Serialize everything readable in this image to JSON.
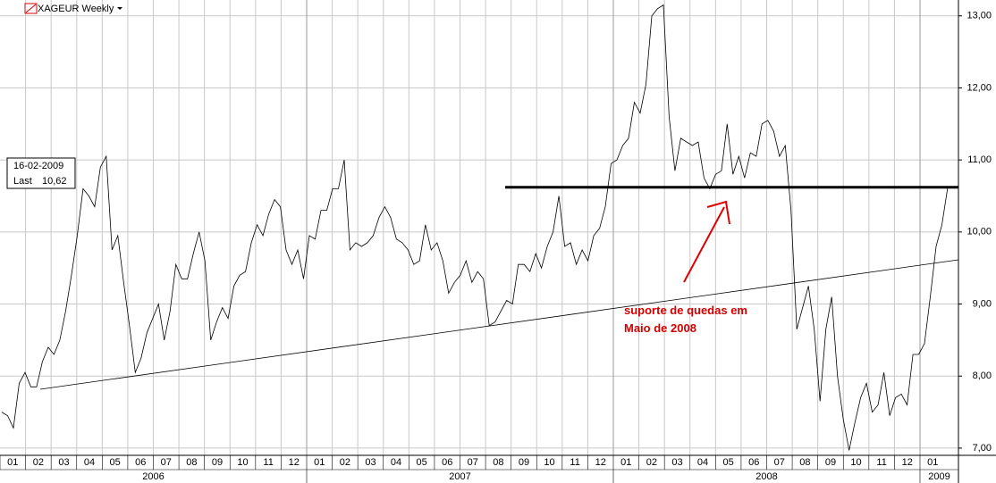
{
  "chart_data": {
    "type": "line",
    "title": "XAGEUR Weekly",
    "info": {
      "date": "16-02-2009",
      "last_label": "Last",
      "last": {
        "value": 10.62,
        "label": "10,62"
      }
    },
    "annotation": [
      "suporte de quedas em",
      "Maio de 2008"
    ],
    "months": [
      "01",
      "02",
      "03",
      "04",
      "05",
      "06",
      "07",
      "08",
      "09",
      "10",
      "11",
      "12",
      "01",
      "02",
      "03",
      "04",
      "05",
      "06",
      "07",
      "08",
      "09",
      "10",
      "11",
      "12",
      "01",
      "02",
      "03",
      "04",
      "05",
      "06",
      "07",
      "08",
      "09",
      "10",
      "11",
      "12",
      "01"
    ],
    "years": [
      "2006",
      "2007",
      "2008",
      "2009"
    ],
    "series": [
      {
        "name": "XAGEUR",
        "color": "#000000",
        "values": [
          7.5,
          7.45,
          7.28,
          7.9,
          8.05,
          7.85,
          7.85,
          8.2,
          8.4,
          8.3,
          8.5,
          8.9,
          9.4,
          9.95,
          10.6,
          10.5,
          10.35,
          10.9,
          11.05,
          9.75,
          9.95,
          9.3,
          8.7,
          8.05,
          8.25,
          8.6,
          8.8,
          9.0,
          8.5,
          8.9,
          9.55,
          9.35,
          9.35,
          9.7,
          10.0,
          9.6,
          8.5,
          8.75,
          8.95,
          8.8,
          9.25,
          9.4,
          9.45,
          9.85,
          10.1,
          9.95,
          10.25,
          10.45,
          10.35,
          9.75,
          9.55,
          9.75,
          9.35,
          9.95,
          9.9,
          10.3,
          10.3,
          10.6,
          10.6,
          11.0,
          9.75,
          9.85,
          9.8,
          9.85,
          9.95,
          10.2,
          10.35,
          10.2,
          9.9,
          9.85,
          9.75,
          9.55,
          9.6,
          10.1,
          9.75,
          9.85,
          9.6,
          9.15,
          9.3,
          9.4,
          9.6,
          9.3,
          9.45,
          9.35,
          8.7,
          8.75,
          8.9,
          9.05,
          9.0,
          9.55,
          9.55,
          9.45,
          9.7,
          9.5,
          9.8,
          10.0,
          10.5,
          9.8,
          9.85,
          9.55,
          9.75,
          9.6,
          9.95,
          10.05,
          10.35,
          10.95,
          11.0,
          11.2,
          11.3,
          11.8,
          11.65,
          12.05,
          13.0,
          13.1,
          13.15,
          11.6,
          10.85,
          11.3,
          11.25,
          11.2,
          11.25,
          10.75,
          10.6,
          10.8,
          10.85,
          11.5,
          10.8,
          11.05,
          10.75,
          11.1,
          11.05,
          11.5,
          11.55,
          11.4,
          11.05,
          11.2,
          10.3,
          8.65,
          8.95,
          9.25,
          8.65,
          7.65,
          8.65,
          9.1,
          8.0,
          7.4,
          6.97,
          7.35,
          7.7,
          7.9,
          7.5,
          7.6,
          8.05,
          7.45,
          7.7,
          7.75,
          7.6,
          8.3,
          8.3,
          8.45,
          9.1,
          9.8,
          10.1,
          10.62
        ]
      }
    ],
    "ylim": [
      6.9,
      13.22
    ],
    "yticks": [
      {
        "value": 7,
        "label": "7,00"
      },
      {
        "value": 8,
        "label": "8,00"
      },
      {
        "value": 9,
        "label": "9,00"
      },
      {
        "value": 10,
        "label": "10,00"
      },
      {
        "value": 11,
        "label": "11,00"
      },
      {
        "value": 12,
        "label": "12,00"
      },
      {
        "value": 13,
        "label": "13,00"
      }
    ],
    "grid": true
  }
}
